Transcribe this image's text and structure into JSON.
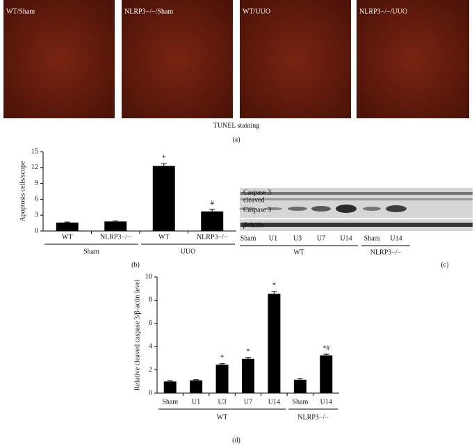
{
  "panel_a": {
    "images": [
      "WT/Sham",
      "NLRP3−/−/Sham",
      "WT/UUO",
      "NLRP3−/−/UUO"
    ],
    "caption": "TUNEL staining",
    "panel_label": "(a)"
  },
  "panel_c": {
    "rows": [
      "Caspase 3",
      "cleaved",
      "Caspase 3",
      "β-Actin"
    ],
    "lanes": [
      "Sham",
      "U1",
      "U3",
      "U7",
      "U14",
      "Sham",
      "U14"
    ],
    "groups": [
      "WT",
      "NLRP3−/−"
    ],
    "panel_label": "(c)"
  },
  "chart_data": [
    {
      "type": "bar",
      "y_label": "Apoptosis cells/scope",
      "panel_label": "(b)",
      "categories": [
        "WT",
        "NLRP3−/−",
        "WT",
        "NLRP3−/−"
      ],
      "group_labels": [
        "Sham",
        "UUO"
      ],
      "values": [
        1.6,
        1.8,
        12.3,
        3.7
      ],
      "errors": [
        0.1,
        0.1,
        0.4,
        0.4
      ],
      "annotations": [
        null,
        null,
        "*",
        "#"
      ],
      "color": "#000000",
      "ylim": [
        0,
        15
      ],
      "yticks": [
        0,
        3,
        6,
        9,
        12,
        15
      ]
    },
    {
      "type": "bar",
      "y_label": "Relative cleaved caspase 3/β-actin level",
      "panel_label": "(d)",
      "categories": [
        "Sham",
        "U1",
        "U3",
        "U7",
        "U14",
        "Sham",
        "U14"
      ],
      "group_labels": [
        "WT",
        "NLRP3−/−"
      ],
      "values": [
        1.0,
        1.1,
        2.45,
        2.95,
        8.55,
        1.15,
        3.25
      ],
      "errors": [
        0.08,
        0.05,
        0.08,
        0.12,
        0.2,
        0.1,
        0.1
      ],
      "annotations": [
        null,
        null,
        "*",
        "*",
        "*",
        null,
        "*#"
      ],
      "color": "#000000",
      "ylim": [
        0,
        10
      ],
      "yticks": [
        0,
        2,
        4,
        6,
        8,
        10
      ]
    }
  ]
}
